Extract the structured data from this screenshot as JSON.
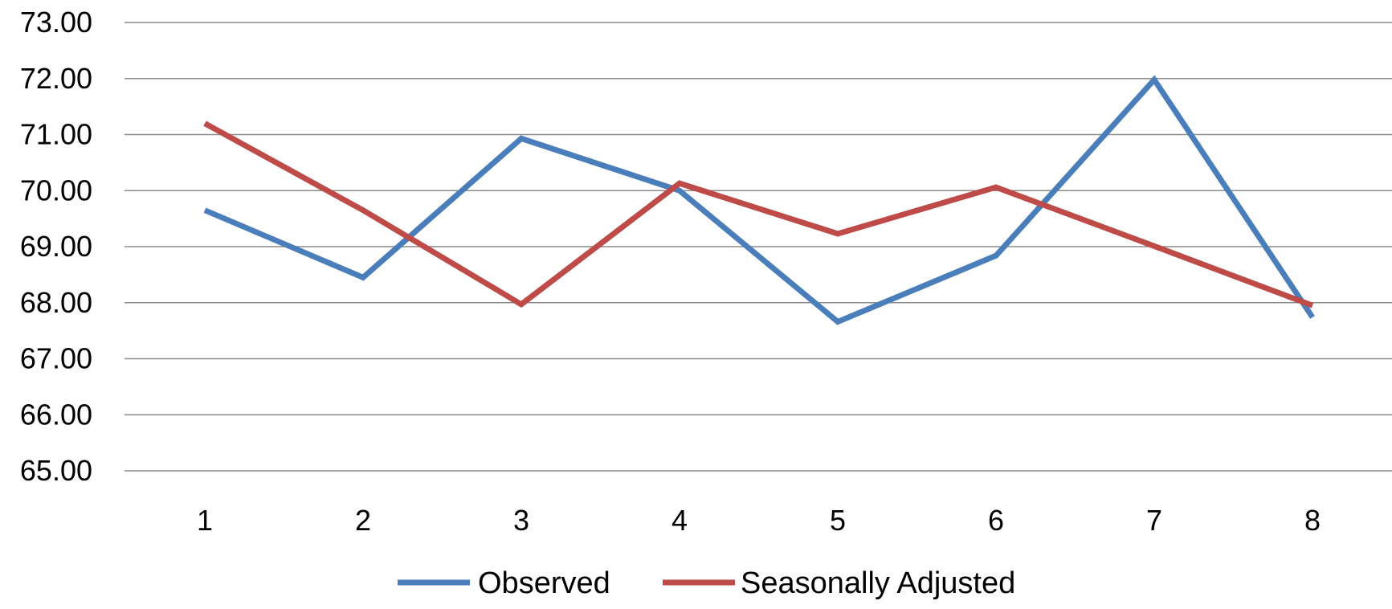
{
  "chart_data": {
    "type": "line",
    "title": "",
    "xlabel": "",
    "ylabel": "",
    "categories": [
      "1",
      "2",
      "3",
      "4",
      "5",
      "6",
      "7",
      "8"
    ],
    "ylim": [
      65,
      73
    ],
    "yticks": [
      "65.00",
      "66.00",
      "67.00",
      "68.00",
      "69.00",
      "70.00",
      "71.00",
      "72.00",
      "73.00"
    ],
    "grid": true,
    "legend_position": "bottom",
    "series": [
      {
        "name": "Observed",
        "color": "#4a7ebb",
        "values": [
          69.65,
          68.45,
          70.93,
          70.0,
          67.66,
          68.84,
          71.98,
          67.74
        ]
      },
      {
        "name": "Seasonally Adjusted",
        "color": "#be4b48",
        "values": [
          71.2,
          69.65,
          67.97,
          70.13,
          69.23,
          70.06,
          69.01,
          67.95
        ]
      }
    ]
  }
}
